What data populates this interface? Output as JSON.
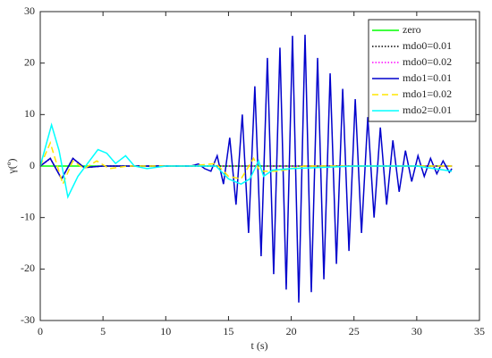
{
  "chart_data": {
    "type": "line",
    "xlabel": "t (s)",
    "ylabel": "γ(º)",
    "xlim": [
      0,
      35
    ],
    "xticks": [
      0,
      5,
      10,
      15,
      20,
      25,
      30,
      35
    ],
    "ylim": [
      -30,
      30
    ],
    "yticks": [
      -30,
      -20,
      -10,
      0,
      10,
      20,
      30
    ],
    "legend": "upper right",
    "series": [
      {
        "name": "zero",
        "color": "#00ff00",
        "dash": "solid",
        "x": [
          0,
          32.8
        ],
        "values": [
          0,
          0
        ]
      },
      {
        "name": "mdo0=0.01",
        "color": "#000000",
        "dash": "dotted",
        "x": [
          0,
          0.8,
          1.7,
          2.6,
          3.5,
          5,
          32.8
        ],
        "values": [
          0,
          1.5,
          -2.5,
          1.5,
          -0.3,
          0,
          0
        ]
      },
      {
        "name": "mdo0=0.02",
        "color": "#ff00ff",
        "dash": "dotted",
        "x": [
          0,
          0.8,
          1.7,
          2.6,
          3.5,
          5,
          32.8
        ],
        "values": [
          0,
          1.4,
          -2.4,
          1.4,
          -0.3,
          0,
          0
        ]
      },
      {
        "name": "mdo1=0.01",
        "color": "#0000cc",
        "dash": "solid",
        "x": [
          0,
          0.8,
          1.7,
          2.6,
          3.5,
          5,
          12,
          12.6,
          13.1,
          13.6,
          14.1,
          14.6,
          15.1,
          15.6,
          16.1,
          16.6,
          17.1,
          17.6,
          18.1,
          18.6,
          19.1,
          19.6,
          20.1,
          20.6,
          21.1,
          21.6,
          22.1,
          22.6,
          23.1,
          23.6,
          24.1,
          24.6,
          25.1,
          25.6,
          26.1,
          26.6,
          27.1,
          27.6,
          28.1,
          28.6,
          29.1,
          29.6,
          30.1,
          30.6,
          31.1,
          31.6,
          32.1,
          32.6,
          32.8
        ],
        "values": [
          0,
          1.5,
          -2.5,
          1.5,
          -0.3,
          0,
          0,
          0.4,
          -0.5,
          -1,
          2,
          -3.5,
          5.5,
          -7.5,
          10,
          -13,
          15.5,
          -17.5,
          21,
          -21,
          23,
          -24,
          25.3,
          -26.5,
          25.5,
          -24.5,
          21,
          -22,
          18,
          -19,
          15,
          -16.5,
          13,
          -13,
          9.5,
          -10,
          7.5,
          -7.5,
          5,
          -5,
          3,
          -3,
          2,
          -2,
          1.5,
          -1.5,
          1,
          -1.2,
          -0.5
        ]
      },
      {
        "name": "mdo1=0.02",
        "color": "#ffe600",
        "dash": "dashed",
        "x": [
          0,
          0.8,
          1.8,
          2.6,
          3.5,
          4.5,
          5.5,
          7,
          12,
          14,
          15,
          16,
          17,
          17.5,
          19,
          21,
          25,
          32.8
        ],
        "values": [
          0,
          4.5,
          -3.5,
          1,
          -0.5,
          1,
          -0.5,
          0,
          0,
          0.5,
          -2,
          -2.5,
          1.5,
          -1,
          -1,
          0,
          0,
          0
        ]
      },
      {
        "name": "mdo2=0.01",
        "color": "#00ffff",
        "dash": "solid",
        "x": [
          0,
          0.9,
          1.5,
          2.2,
          3,
          4.6,
          5.3,
          6,
          6.8,
          7.5,
          8.5,
          10,
          12,
          14,
          15,
          16,
          16.7,
          17.4,
          17.8,
          18.5,
          20,
          25,
          30,
          32.8
        ],
        "values": [
          0,
          8,
          3,
          -6,
          -2,
          3.2,
          2.5,
          0.5,
          2,
          0,
          -0.5,
          0,
          0,
          0,
          -2.5,
          -3.5,
          -2.5,
          1,
          -2,
          -0.8,
          -0.5,
          0,
          0,
          -1
        ]
      }
    ]
  }
}
